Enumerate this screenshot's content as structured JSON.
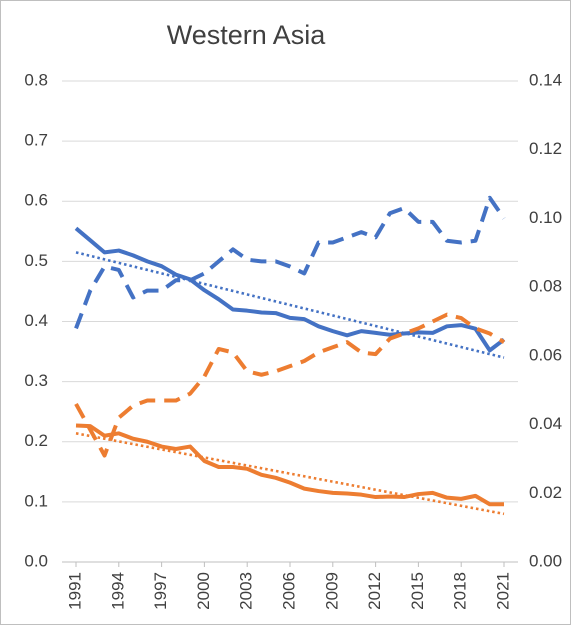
{
  "chart_data": {
    "type": "line",
    "title": "Western Asia",
    "x": [
      1991,
      1992,
      1993,
      1994,
      1995,
      1996,
      1997,
      1998,
      1999,
      2000,
      2001,
      2002,
      2003,
      2004,
      2005,
      2006,
      2007,
      2008,
      2009,
      2010,
      2011,
      2012,
      2013,
      2014,
      2015,
      2016,
      2017,
      2018,
      2019,
      2020,
      2021
    ],
    "xlim": [
      1991,
      2021
    ],
    "xticks": [
      1991,
      1994,
      1997,
      2000,
      2003,
      2006,
      2009,
      2012,
      2015,
      2018,
      2021
    ],
    "ylim": [
      0,
      0.8
    ],
    "yticks": [
      {
        "value": 0,
        "label": "0.0"
      },
      0.1,
      0.2,
      0.3,
      0.4,
      0.5,
      0.6,
      0.7,
      0.8
    ],
    "y2lim": [
      0,
      0.14
    ],
    "y2ticks": [
      {
        "value": 0,
        "label": "0.00"
      },
      0.02,
      0.04,
      0.06,
      0.08,
      {
        "value": 0.1,
        "label": "0.10"
      },
      0.12,
      0.14
    ],
    "grid": true,
    "series": [
      {
        "color": "#4472c4",
        "style": "solid",
        "axis": "y",
        "values": [
          0.555,
          0.535,
          0.515,
          0.518,
          0.51,
          0.5,
          0.492,
          0.478,
          0.47,
          0.452,
          0.437,
          0.42,
          0.418,
          0.415,
          0.414,
          0.406,
          0.404,
          0.392,
          0.384,
          0.377,
          0.384,
          0.381,
          0.378,
          0.38,
          0.382,
          0.381,
          0.392,
          0.394,
          0.388,
          0.352,
          0.37
        ]
      },
      {
        "color": "#4472c4",
        "style": "dashed",
        "axis": "y2",
        "values": [
          0.068,
          0.079,
          0.086,
          0.085,
          0.077,
          0.079,
          0.079,
          0.082,
          0.082,
          0.084,
          0.0875,
          0.091,
          0.088,
          0.0875,
          0.0875,
          0.086,
          0.084,
          0.093,
          0.093,
          0.0945,
          0.096,
          0.0945,
          0.1015,
          0.103,
          0.099,
          0.099,
          0.0935,
          0.093,
          0.0935,
          0.106,
          0.1
        ]
      },
      {
        "color": "#ed7d31",
        "style": "solid",
        "axis": "y",
        "values": [
          0.227,
          0.226,
          0.21,
          0.214,
          0.205,
          0.2,
          0.192,
          0.188,
          0.192,
          0.168,
          0.158,
          0.158,
          0.155,
          0.145,
          0.14,
          0.132,
          0.122,
          0.118,
          0.115,
          0.114,
          0.112,
          0.108,
          0.109,
          0.108,
          0.113,
          0.115,
          0.107,
          0.105,
          0.11,
          0.096,
          0.096
        ]
      },
      {
        "color": "#ed7d31",
        "style": "dashed",
        "axis": "y2",
        "values": [
          0.046,
          0.0385,
          0.031,
          0.042,
          0.0455,
          0.047,
          0.047,
          0.047,
          0.049,
          0.054,
          0.062,
          0.061,
          0.0555,
          0.0545,
          0.0555,
          0.057,
          0.0585,
          0.061,
          0.0625,
          0.064,
          0.061,
          0.0605,
          0.065,
          0.0665,
          0.068,
          0.07,
          0.072,
          0.071,
          0.068,
          0.0665,
          0.064
        ]
      },
      {
        "color": "#4472c4",
        "style": "dotted",
        "axis": "y",
        "x": [
          1991,
          2021
        ],
        "values": [
          0.515,
          0.34
        ]
      },
      {
        "color": "#ed7d31",
        "style": "dotted",
        "axis": "y",
        "x": [
          1991,
          2021
        ],
        "values": [
          0.214,
          0.08
        ]
      }
    ]
  }
}
